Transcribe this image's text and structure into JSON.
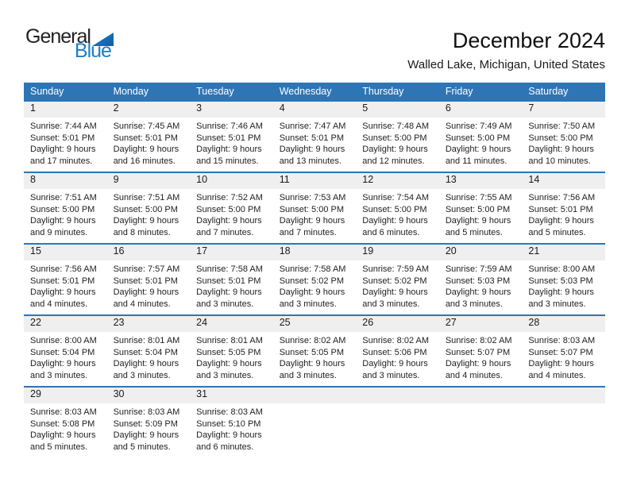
{
  "logo": {
    "word_top": "General",
    "word_bottom": "Blue",
    "triangle_icon": "flag-triangle-icon"
  },
  "header": {
    "title": "December 2024",
    "subtitle": "Walled Lake, Michigan, United States"
  },
  "colors": {
    "header_blue": "#2E75B6",
    "strip_gray": "#EFEFEF",
    "logo_blue": "#1B7EC8",
    "logo_triangle_light": "#1B86D0",
    "logo_triangle_dark": "#0D5D9F"
  },
  "calendar": {
    "day_headers": [
      "Sunday",
      "Monday",
      "Tuesday",
      "Wednesday",
      "Thursday",
      "Friday",
      "Saturday"
    ],
    "weeks": [
      [
        {
          "day": "1",
          "lines": [
            "Sunrise: 7:44 AM",
            "Sunset: 5:01 PM",
            "Daylight: 9 hours",
            "and 17 minutes."
          ]
        },
        {
          "day": "2",
          "lines": [
            "Sunrise: 7:45 AM",
            "Sunset: 5:01 PM",
            "Daylight: 9 hours",
            "and 16 minutes."
          ]
        },
        {
          "day": "3",
          "lines": [
            "Sunrise: 7:46 AM",
            "Sunset: 5:01 PM",
            "Daylight: 9 hours",
            "and 15 minutes."
          ]
        },
        {
          "day": "4",
          "lines": [
            "Sunrise: 7:47 AM",
            "Sunset: 5:01 PM",
            "Daylight: 9 hours",
            "and 13 minutes."
          ]
        },
        {
          "day": "5",
          "lines": [
            "Sunrise: 7:48 AM",
            "Sunset: 5:00 PM",
            "Daylight: 9 hours",
            "and 12 minutes."
          ]
        },
        {
          "day": "6",
          "lines": [
            "Sunrise: 7:49 AM",
            "Sunset: 5:00 PM",
            "Daylight: 9 hours",
            "and 11 minutes."
          ]
        },
        {
          "day": "7",
          "lines": [
            "Sunrise: 7:50 AM",
            "Sunset: 5:00 PM",
            "Daylight: 9 hours",
            "and 10 minutes."
          ]
        }
      ],
      [
        {
          "day": "8",
          "lines": [
            "Sunrise: 7:51 AM",
            "Sunset: 5:00 PM",
            "Daylight: 9 hours",
            "and 9 minutes."
          ]
        },
        {
          "day": "9",
          "lines": [
            "Sunrise: 7:51 AM",
            "Sunset: 5:00 PM",
            "Daylight: 9 hours",
            "and 8 minutes."
          ]
        },
        {
          "day": "10",
          "lines": [
            "Sunrise: 7:52 AM",
            "Sunset: 5:00 PM",
            "Daylight: 9 hours",
            "and 7 minutes."
          ]
        },
        {
          "day": "11",
          "lines": [
            "Sunrise: 7:53 AM",
            "Sunset: 5:00 PM",
            "Daylight: 9 hours",
            "and 7 minutes."
          ]
        },
        {
          "day": "12",
          "lines": [
            "Sunrise: 7:54 AM",
            "Sunset: 5:00 PM",
            "Daylight: 9 hours",
            "and 6 minutes."
          ]
        },
        {
          "day": "13",
          "lines": [
            "Sunrise: 7:55 AM",
            "Sunset: 5:00 PM",
            "Daylight: 9 hours",
            "and 5 minutes."
          ]
        },
        {
          "day": "14",
          "lines": [
            "Sunrise: 7:56 AM",
            "Sunset: 5:01 PM",
            "Daylight: 9 hours",
            "and 5 minutes."
          ]
        }
      ],
      [
        {
          "day": "15",
          "lines": [
            "Sunrise: 7:56 AM",
            "Sunset: 5:01 PM",
            "Daylight: 9 hours",
            "and 4 minutes."
          ]
        },
        {
          "day": "16",
          "lines": [
            "Sunrise: 7:57 AM",
            "Sunset: 5:01 PM",
            "Daylight: 9 hours",
            "and 4 minutes."
          ]
        },
        {
          "day": "17",
          "lines": [
            "Sunrise: 7:58 AM",
            "Sunset: 5:01 PM",
            "Daylight: 9 hours",
            "and 3 minutes."
          ]
        },
        {
          "day": "18",
          "lines": [
            "Sunrise: 7:58 AM",
            "Sunset: 5:02 PM",
            "Daylight: 9 hours",
            "and 3 minutes."
          ]
        },
        {
          "day": "19",
          "lines": [
            "Sunrise: 7:59 AM",
            "Sunset: 5:02 PM",
            "Daylight: 9 hours",
            "and 3 minutes."
          ]
        },
        {
          "day": "20",
          "lines": [
            "Sunrise: 7:59 AM",
            "Sunset: 5:03 PM",
            "Daylight: 9 hours",
            "and 3 minutes."
          ]
        },
        {
          "day": "21",
          "lines": [
            "Sunrise: 8:00 AM",
            "Sunset: 5:03 PM",
            "Daylight: 9 hours",
            "and 3 minutes."
          ]
        }
      ],
      [
        {
          "day": "22",
          "lines": [
            "Sunrise: 8:00 AM",
            "Sunset: 5:04 PM",
            "Daylight: 9 hours",
            "and 3 minutes."
          ]
        },
        {
          "day": "23",
          "lines": [
            "Sunrise: 8:01 AM",
            "Sunset: 5:04 PM",
            "Daylight: 9 hours",
            "and 3 minutes."
          ]
        },
        {
          "day": "24",
          "lines": [
            "Sunrise: 8:01 AM",
            "Sunset: 5:05 PM",
            "Daylight: 9 hours",
            "and 3 minutes."
          ]
        },
        {
          "day": "25",
          "lines": [
            "Sunrise: 8:02 AM",
            "Sunset: 5:05 PM",
            "Daylight: 9 hours",
            "and 3 minutes."
          ]
        },
        {
          "day": "26",
          "lines": [
            "Sunrise: 8:02 AM",
            "Sunset: 5:06 PM",
            "Daylight: 9 hours",
            "and 3 minutes."
          ]
        },
        {
          "day": "27",
          "lines": [
            "Sunrise: 8:02 AM",
            "Sunset: 5:07 PM",
            "Daylight: 9 hours",
            "and 4 minutes."
          ]
        },
        {
          "day": "28",
          "lines": [
            "Sunrise: 8:03 AM",
            "Sunset: 5:07 PM",
            "Daylight: 9 hours",
            "and 4 minutes."
          ]
        }
      ],
      [
        {
          "day": "29",
          "lines": [
            "Sunrise: 8:03 AM",
            "Sunset: 5:08 PM",
            "Daylight: 9 hours",
            "and 5 minutes."
          ]
        },
        {
          "day": "30",
          "lines": [
            "Sunrise: 8:03 AM",
            "Sunset: 5:09 PM",
            "Daylight: 9 hours",
            "and 5 minutes."
          ]
        },
        {
          "day": "31",
          "lines": [
            "Sunrise: 8:03 AM",
            "Sunset: 5:10 PM",
            "Daylight: 9 hours",
            "and 6 minutes."
          ]
        },
        null,
        null,
        null,
        null
      ]
    ]
  }
}
